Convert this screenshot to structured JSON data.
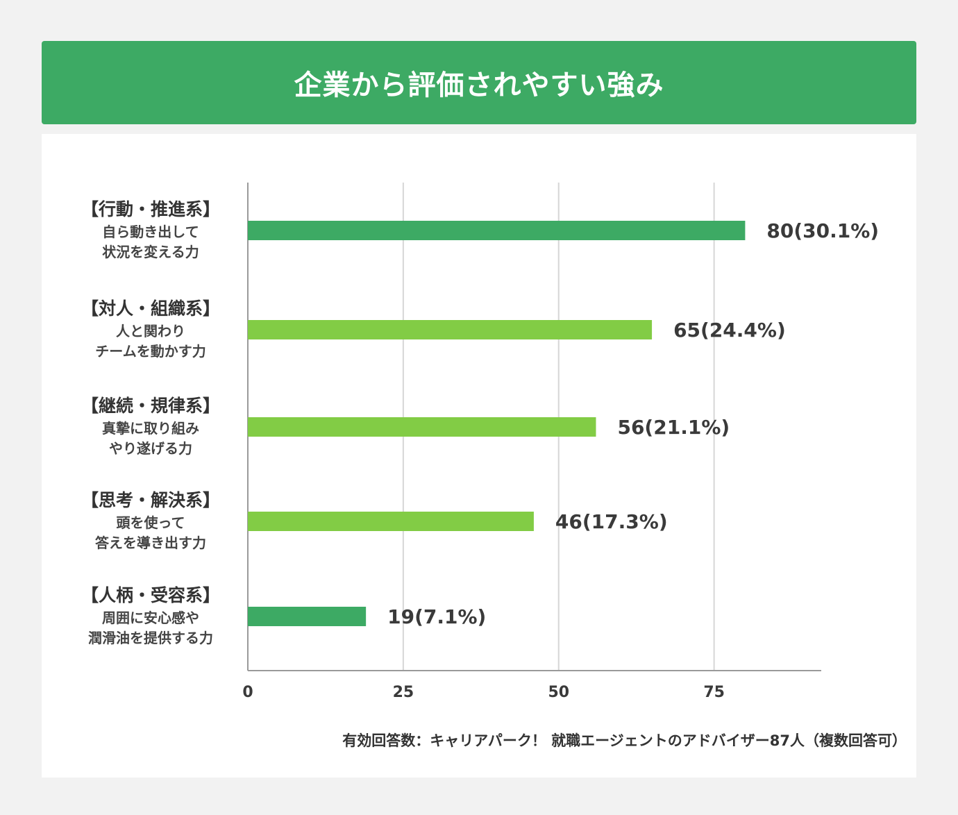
{
  "title": "企業から評価されやすい強み",
  "note": "有効回答数：キャリアパーク！ 就職エージェントのアドバイザー87人（複数回答可）",
  "chart_data": {
    "type": "bar",
    "orientation": "horizontal",
    "categories": [
      {
        "title": "【行動・推進系】",
        "desc": [
          "自ら動き出して",
          "状況を変える力"
        ]
      },
      {
        "title": "【対人・組織系】",
        "desc": [
          "人と関わり",
          "チームを動かす力"
        ]
      },
      {
        "title": "【継続・規律系】",
        "desc": [
          "真摯に取り組み",
          "やり遂げる力"
        ]
      },
      {
        "title": "【思考・解決系】",
        "desc": [
          "頭を使って",
          "答えを導き出す力"
        ]
      },
      {
        "title": "【人柄・受容系】",
        "desc": [
          "周囲に安心感や",
          "潤滑油を提供する力"
        ]
      }
    ],
    "values": [
      80,
      65,
      56,
      46,
      19
    ],
    "value_labels": [
      "80(30.1%)",
      "65(24.4%)",
      "56(21.1%)",
      "46(17.3%)",
      "19(7.1%)"
    ],
    "bar_colors": [
      "#3daa64",
      "#82cc45",
      "#82cc45",
      "#82cc45",
      "#3daa64"
    ],
    "xticks": [
      "0",
      "25",
      "50",
      "75"
    ],
    "xtick_values": [
      0,
      25,
      50,
      75
    ],
    "xlim": [
      0,
      92
    ],
    "grid": true
  }
}
